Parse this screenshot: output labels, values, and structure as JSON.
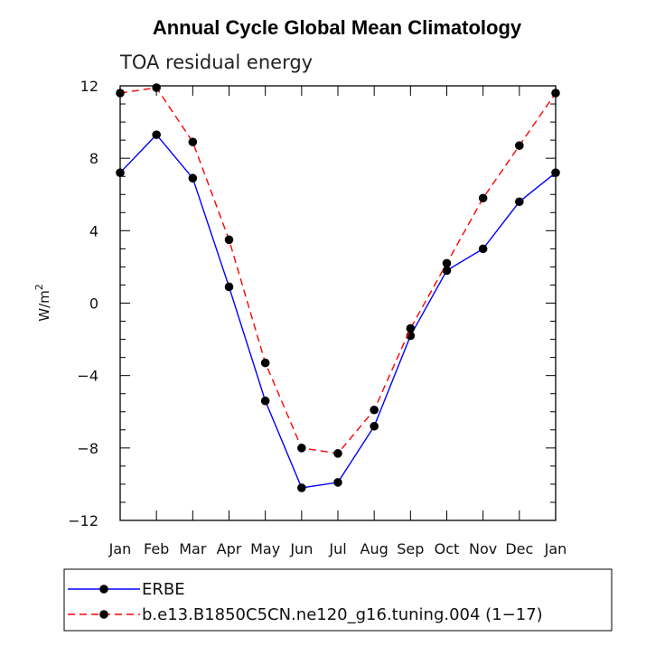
{
  "chart_data": {
    "type": "line",
    "title": "Annual Cycle Global Mean Climatology",
    "subtitle": "TOA residual energy",
    "xlabel": "",
    "ylabel_base": "W/m",
    "ylabel_sup": "2",
    "categories": [
      "Jan",
      "Feb",
      "Mar",
      "Apr",
      "May",
      "Jun",
      "Jul",
      "Aug",
      "Sep",
      "Oct",
      "Nov",
      "Dec",
      "Jan"
    ],
    "ylim": [
      -12,
      12
    ],
    "yticks": [
      12,
      8,
      4,
      0,
      -4,
      -8,
      -12
    ],
    "ytick_labels": [
      "12",
      "8",
      "4",
      "0",
      "−4",
      "−8",
      "−12"
    ],
    "series": [
      {
        "name": "ERBE",
        "color": "#0000ff",
        "dash": "solid",
        "values": [
          7.2,
          9.3,
          6.9,
          0.9,
          -5.4,
          -10.2,
          -9.9,
          -6.8,
          -1.8,
          1.8,
          3.0,
          5.6,
          7.2
        ]
      },
      {
        "name": "b.e13.B1850C5CN.ne120_g16.tuning.004 (1−17)",
        "color": "#ff0000",
        "dash": "dashed",
        "values": [
          11.6,
          11.9,
          8.9,
          3.5,
          -3.3,
          -8.0,
          -8.3,
          -5.9,
          -1.4,
          2.2,
          5.8,
          8.7,
          11.6
        ]
      }
    ]
  }
}
